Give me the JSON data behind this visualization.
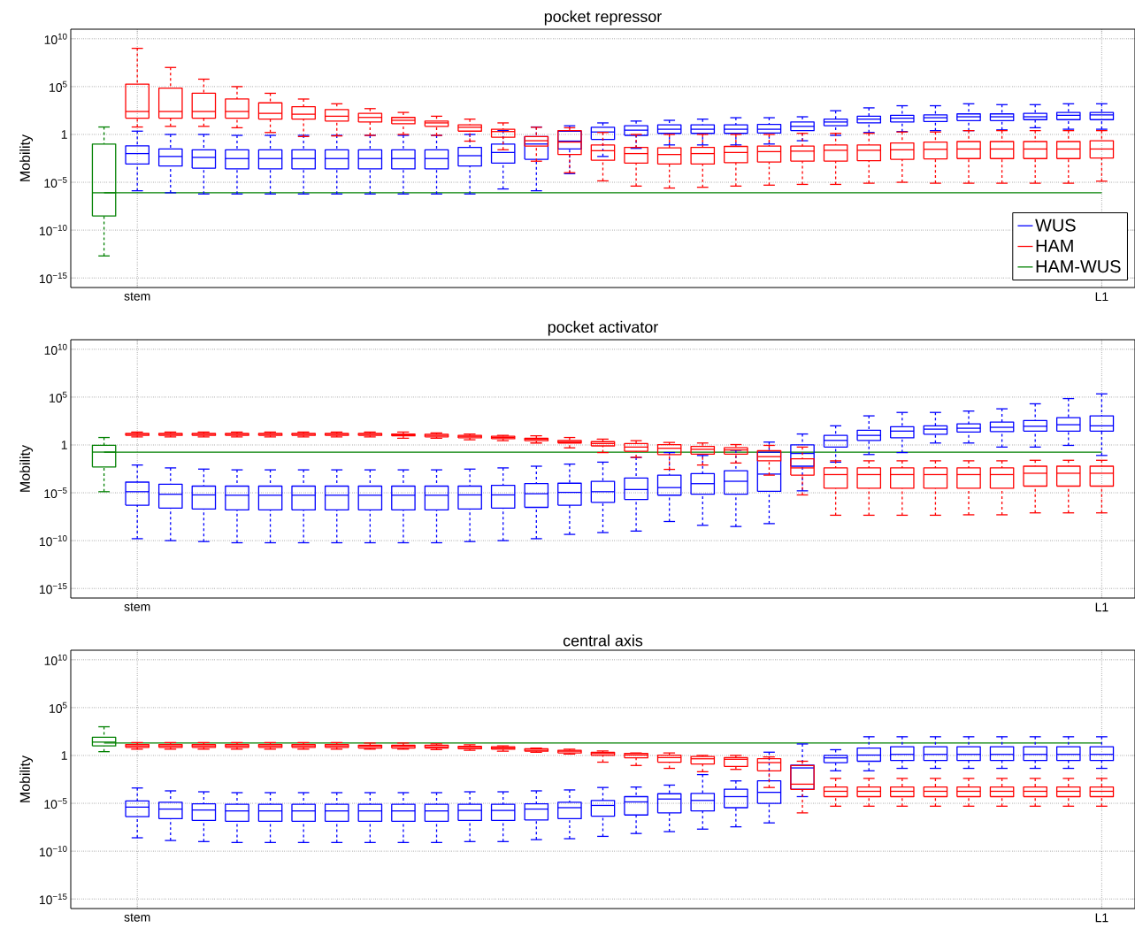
{
  "chart_data": [
    {
      "type": "box",
      "title": "pocket repressor",
      "ylabel": "Mobility",
      "log": "y",
      "grid": true,
      "legend": "bottom right",
      "ylim": [
        1e-16,
        100000000000.0
      ],
      "yticks": [
        {
          "value": 1e-15,
          "label": "10$^{−15}$"
        },
        {
          "value": 1e-10,
          "label": "10$^{−10}$"
        },
        {
          "value": 1e-05,
          "label": "10$^{−5}$"
        },
        1,
        {
          "value": 100000.0,
          "label": "10$^{5}$"
        },
        {
          "value": 10000000000.0,
          "label": "10$^{10}$"
        }
      ],
      "categories": [
        null,
        "stem",
        null,
        null,
        null,
        null,
        null,
        null,
        null,
        null,
        null,
        null,
        null,
        null,
        null,
        null,
        null,
        null,
        null,
        null,
        null,
        null,
        null,
        null,
        null,
        null,
        null,
        null,
        null,
        null,
        "L1"
      ],
      "ref_lines": [
        {
          "axis": "y",
          "value": 8e-07,
          "color": "#008000"
        }
      ],
      "series": [
        {
          "name": "WUS",
          "color": "#0000ff",
          "boxes": [
            null,
            {
              "low": 1.3e-06,
              "q1": 0.0008,
              "median": 0.01,
              "q3": 0.063,
              "high": 2.2
            },
            {
              "low": 8e-07,
              "q1": 0.0005,
              "median": 0.005,
              "q3": 0.03,
              "high": 1
            },
            {
              "low": 6e-07,
              "q1": 0.0003,
              "median": 0.004,
              "q3": 0.025,
              "high": 1
            },
            {
              "low": 6e-07,
              "q1": 0.00025,
              "median": 0.003,
              "q3": 0.025,
              "high": 0.8
            },
            {
              "low": 6e-07,
              "q1": 0.00025,
              "median": 0.003,
              "q3": 0.025,
              "high": 0.8
            },
            {
              "low": 6e-07,
              "q1": 0.00025,
              "median": 0.003,
              "q3": 0.025,
              "high": 0.8
            },
            {
              "low": 6e-07,
              "q1": 0.00025,
              "median": 0.003,
              "q3": 0.025,
              "high": 0.8
            },
            {
              "low": 6e-07,
              "q1": 0.00025,
              "median": 0.003,
              "q3": 0.025,
              "high": 0.8
            },
            {
              "low": 6e-07,
              "q1": 0.00025,
              "median": 0.003,
              "q3": 0.025,
              "high": 0.8
            },
            {
              "low": 6e-07,
              "q1": 0.00025,
              "median": 0.003,
              "q3": 0.025,
              "high": 0.8
            },
            {
              "low": 6e-07,
              "q1": 0.0005,
              "median": 0.006,
              "q3": 0.045,
              "high": 1
            },
            {
              "low": 2e-06,
              "q1": 0.001,
              "median": 0.013,
              "q3": 0.1,
              "high": 2.5
            },
            {
              "low": 1.3e-06,
              "q1": 0.0025,
              "median": 0.1,
              "q3": 0.6,
              "high": 6
            },
            {
              "low": 8e-05,
              "q1": 0.03,
              "median": 0.2,
              "q3": 2.2,
              "high": 8
            },
            {
              "low": 0.005,
              "q1": 0.3,
              "median": 1.8,
              "q3": 5.6,
              "high": 16
            },
            {
              "low": 0.035,
              "q1": 0.8,
              "median": 2.8,
              "q3": 8,
              "high": 25
            },
            {
              "low": 0.08,
              "q1": 1.3,
              "median": 3.5,
              "q3": 10,
              "high": 30
            },
            {
              "low": 0.08,
              "q1": 1.3,
              "median": 3.5,
              "q3": 10,
              "high": 40
            },
            {
              "low": 0.08,
              "q1": 1.3,
              "median": 3.5,
              "q3": 10,
              "high": 56
            },
            {
              "low": 0.1,
              "q1": 1.4,
              "median": 3.5,
              "q3": 11,
              "high": 56
            },
            {
              "low": 0.22,
              "q1": 2.5,
              "median": 7,
              "q3": 20,
              "high": 70
            },
            {
              "low": 0.8,
              "q1": 8,
              "median": 20,
              "q3": 40,
              "high": 300
            },
            {
              "low": 1.6,
              "q1": 16,
              "median": 40,
              "q3": 80,
              "high": 600
            },
            {
              "low": 2,
              "q1": 20,
              "median": 50,
              "q3": 100,
              "high": 1000
            },
            {
              "low": 2.5,
              "q1": 22,
              "median": 56,
              "q3": 110,
              "high": 1000
            },
            {
              "low": 2.5,
              "q1": 28,
              "median": 70,
              "q3": 140,
              "high": 1600
            },
            {
              "low": 3,
              "q1": 28,
              "median": 70,
              "q3": 140,
              "high": 1300
            },
            {
              "low": 5,
              "q1": 35,
              "median": 70,
              "q3": 160,
              "high": 1300
            },
            {
              "low": 3.5,
              "q1": 35,
              "median": 100,
              "q3": 200,
              "high": 1600
            },
            {
              "low": 3.5,
              "q1": 35,
              "median": 110,
              "q3": 200,
              "high": 1600
            }
          ]
        },
        {
          "name": "HAM",
          "color": "#ff0000",
          "boxes": [
            null,
            {
              "low": 6,
              "q1": 50,
              "median": 250,
              "q3": 180000.0,
              "high": 1000000000.0
            },
            {
              "low": 7,
              "q1": 50,
              "median": 250,
              "q3": 70000.0,
              "high": 10000000.0
            },
            {
              "low": 7,
              "q1": 50,
              "median": 250,
              "q3": 20000.0,
              "high": 600000.0
            },
            {
              "low": 5,
              "q1": 50,
              "median": 250,
              "q3": 5000,
              "high": 100000.0
            },
            {
              "low": 1.6,
              "q1": 40,
              "median": 160,
              "q3": 2000,
              "high": 20000.0
            },
            {
              "low": 0.6,
              "q1": 40,
              "median": 130,
              "q3": 800,
              "high": 5000
            },
            {
              "low": 0.7,
              "q1": 25,
              "median": 80,
              "q3": 400,
              "high": 1600
            },
            {
              "low": 0.8,
              "q1": 20,
              "median": 60,
              "q3": 160,
              "high": 500
            },
            {
              "low": 1,
              "q1": 13,
              "median": 30,
              "q3": 60,
              "high": 200
            },
            {
              "low": 0.8,
              "q1": 7,
              "median": 16,
              "q3": 25,
              "high": 80
            },
            {
              "low": 0.2,
              "q1": 2.2,
              "median": 5.6,
              "q3": 10,
              "high": 40
            },
            {
              "low": 0.025,
              "q1": 0.5,
              "median": 2,
              "q3": 3.5,
              "high": 16
            },
            {
              "low": 0.0016,
              "q1": 0.06,
              "median": 0.22,
              "q3": 0.6,
              "high": 5.6
            },
            {
              "low": 0.0001,
              "q1": 0.008,
              "median": 0.16,
              "q3": 2.5,
              "high": 5
            },
            {
              "low": 1.4e-05,
              "q1": 0.002,
              "median": 0.02,
              "q3": 0.08,
              "high": 1.6
            },
            {
              "low": 4e-06,
              "q1": 0.001,
              "median": 0.01,
              "q3": 0.045,
              "high": 1
            },
            {
              "low": 2.5e-06,
              "q1": 0.0008,
              "median": 0.008,
              "q3": 0.04,
              "high": 1
            },
            {
              "low": 3e-06,
              "q1": 0.0008,
              "median": 0.01,
              "q3": 0.045,
              "high": 1
            },
            {
              "low": 4e-06,
              "q1": 0.0011,
              "median": 0.013,
              "q3": 0.056,
              "high": 1
            },
            {
              "low": 5e-06,
              "q1": 0.0013,
              "median": 0.016,
              "q3": 0.06,
              "high": 1
            },
            {
              "low": 6e-06,
              "q1": 0.0016,
              "median": 0.018,
              "q3": 0.06,
              "high": 1.3
            },
            {
              "low": 6e-06,
              "q1": 0.0016,
              "median": 0.022,
              "q3": 0.08,
              "high": 1.3
            },
            {
              "low": 8e-06,
              "q1": 0.0018,
              "median": 0.022,
              "q3": 0.08,
              "high": 1.3
            },
            {
              "low": 1e-05,
              "q1": 0.0025,
              "median": 0.025,
              "q3": 0.13,
              "high": 1.8
            },
            {
              "low": 8e-06,
              "q1": 0.0028,
              "median": 0.028,
              "q3": 0.16,
              "high": 1.8
            },
            {
              "low": 8e-06,
              "q1": 0.003,
              "median": 0.03,
              "q3": 0.18,
              "high": 2.5
            },
            {
              "low": 8e-06,
              "q1": 0.003,
              "median": 0.03,
              "q3": 0.18,
              "high": 2.5
            },
            {
              "low": 8e-06,
              "q1": 0.003,
              "median": 0.03,
              "q3": 0.18,
              "high": 2.5
            },
            {
              "low": 8e-06,
              "q1": 0.003,
              "median": 0.03,
              "q3": 0.18,
              "high": 2.5
            },
            {
              "low": 1.3e-05,
              "q1": 0.0035,
              "median": 0.03,
              "q3": 0.22,
              "high": 2.5
            }
          ]
        },
        {
          "name": "HAM-WUS",
          "color": "#008000",
          "boxes": [
            {
              "low": 2e-13,
              "q1": 3e-09,
              "median": 8e-07,
              "q3": 0.1,
              "high": 6
            },
            null,
            null,
            null,
            null,
            null,
            null,
            null,
            null,
            null,
            null,
            null,
            null,
            null,
            null,
            null,
            null,
            null,
            null,
            null,
            null,
            null,
            null,
            null,
            null,
            null,
            null,
            null,
            null,
            null,
            null
          ]
        }
      ]
    },
    {
      "type": "box",
      "title": "pocket activator",
      "ylabel": "Mobility",
      "log": "y",
      "grid": true,
      "ylim": [
        1e-16,
        100000000000.0
      ],
      "yticks": [
        {
          "value": 1e-15,
          "label": "10$^{−15}$"
        },
        {
          "value": 1e-10,
          "label": "10$^{−10}$"
        },
        {
          "value": 1e-05,
          "label": "10$^{−5}$"
        },
        1,
        {
          "value": 100000.0,
          "label": "10$^{5}$"
        },
        {
          "value": 10000000000.0,
          "label": "10$^{10}$"
        }
      ],
      "categories": [
        null,
        "stem",
        null,
        null,
        null,
        null,
        null,
        null,
        null,
        null,
        null,
        null,
        null,
        null,
        null,
        null,
        null,
        null,
        null,
        null,
        null,
        null,
        null,
        null,
        null,
        null,
        null,
        null,
        null,
        null,
        "L1"
      ],
      "ref_lines": [
        {
          "axis": "y",
          "value": 0.18,
          "color": "#008000"
        }
      ],
      "series": [
        {
          "color": "#0000ff",
          "boxes": [
            null,
            {
              "low": 1.6e-10,
              "q1": 5e-07,
              "median": 1.3e-05,
              "q3": 0.00013,
              "high": 0.008
            },
            {
              "low": 1e-10,
              "q1": 2.5e-07,
              "median": 7e-06,
              "q3": 8e-05,
              "high": 0.004
            },
            {
              "low": 8e-11,
              "q1": 2e-07,
              "median": 6e-06,
              "q3": 5e-05,
              "high": 0.003
            },
            {
              "low": 6e-11,
              "q1": 1.6e-07,
              "median": 5.6e-06,
              "q3": 5e-05,
              "high": 0.0025
            },
            {
              "low": 6e-11,
              "q1": 1.6e-07,
              "median": 5.6e-06,
              "q3": 5e-05,
              "high": 0.0025
            },
            {
              "low": 6e-11,
              "q1": 1.6e-07,
              "median": 5.6e-06,
              "q3": 5e-05,
              "high": 0.0025
            },
            {
              "low": 6e-11,
              "q1": 1.6e-07,
              "median": 5.6e-06,
              "q3": 5e-05,
              "high": 0.0025
            },
            {
              "low": 6e-11,
              "q1": 1.6e-07,
              "median": 5.6e-06,
              "q3": 5e-05,
              "high": 0.0025
            },
            {
              "low": 6e-11,
              "q1": 1.6e-07,
              "median": 5.6e-06,
              "q3": 5e-05,
              "high": 0.0025
            },
            {
              "low": 6e-11,
              "q1": 1.6e-07,
              "median": 5.6e-06,
              "q3": 5e-05,
              "high": 0.0025
            },
            {
              "low": 8e-11,
              "q1": 2e-07,
              "median": 6e-06,
              "q3": 5e-05,
              "high": 0.003
            },
            {
              "low": 1e-10,
              "q1": 2.5e-07,
              "median": 6e-06,
              "q3": 6e-05,
              "high": 0.004
            },
            {
              "low": 1.6e-10,
              "q1": 3e-07,
              "median": 8e-06,
              "q3": 9e-05,
              "high": 0.006
            },
            {
              "low": 4.5e-10,
              "q1": 5e-07,
              "median": 1.1e-05,
              "q3": 0.0001,
              "high": 0.01
            },
            {
              "low": 7e-10,
              "q1": 1e-06,
              "median": 1.3e-05,
              "q3": 0.00016,
              "high": 0.016
            },
            {
              "low": 1e-09,
              "q1": 2e-06,
              "median": 2.2e-05,
              "q3": 0.00035,
              "high": 0.05
            },
            {
              "low": 1e-08,
              "q1": 5.6e-06,
              "median": 3.5e-05,
              "q3": 0.0007,
              "high": 0.16
            },
            {
              "low": 4e-09,
              "q1": 7e-06,
              "median": 9e-05,
              "q3": 0.001,
              "high": 0.08
            },
            {
              "low": 3e-09,
              "q1": 7e-06,
              "median": 0.00016,
              "q3": 0.002,
              "high": 0.28
            },
            {
              "low": 6e-09,
              "q1": 1.4e-05,
              "median": 0.0009,
              "q3": 0.18,
              "high": 2
            },
            {
              "low": 1.6e-05,
              "q1": 0.006,
              "median": 0.13,
              "q3": 1,
              "high": 14
            },
            {
              "low": 0.016,
              "q1": 0.6,
              "median": 3,
              "q3": 10,
              "high": 100
            },
            {
              "low": 0.1,
              "q1": 3,
              "median": 10,
              "q3": 35,
              "high": 1100
            },
            {
              "low": 0.16,
              "q1": 5.6,
              "median": 28,
              "q3": 80,
              "high": 2500
            },
            {
              "low": 1.6,
              "q1": 13,
              "median": 45,
              "q3": 100,
              "high": 2500
            },
            {
              "low": 1.6,
              "q1": 22,
              "median": 56,
              "q3": 160,
              "high": 3500
            },
            {
              "low": 0.6,
              "q1": 25,
              "median": 70,
              "q3": 250,
              "high": 6000
            },
            {
              "low": 0.6,
              "q1": 28,
              "median": 90,
              "q3": 350,
              "high": 20000.0
            },
            {
              "low": 0.9,
              "q1": 28,
              "median": 130,
              "q3": 700,
              "high": 70000.0
            },
            {
              "low": 0.08,
              "q1": 28,
              "median": 100,
              "q3": 1100,
              "high": 220000.0
            }
          ]
        },
        {
          "color": "#ff0000",
          "boxes": [
            null,
            {
              "low": 7,
              "q1": 10,
              "median": 13,
              "q3": 16,
              "high": 22
            },
            {
              "low": 7,
              "q1": 10,
              "median": 13,
              "q3": 16,
              "high": 22
            },
            {
              "low": 7,
              "q1": 10,
              "median": 13,
              "q3": 16,
              "high": 22
            },
            {
              "low": 7,
              "q1": 10,
              "median": 13,
              "q3": 16,
              "high": 22
            },
            {
              "low": 7,
              "q1": 10,
              "median": 13,
              "q3": 16,
              "high": 22
            },
            {
              "low": 7,
              "q1": 10,
              "median": 13,
              "q3": 16,
              "high": 22
            },
            {
              "low": 7,
              "q1": 10,
              "median": 13,
              "q3": 16,
              "high": 22
            },
            {
              "low": 7,
              "q1": 10,
              "median": 13,
              "q3": 16,
              "high": 22
            },
            {
              "low": 5,
              "q1": 9,
              "median": 11,
              "q3": 14,
              "high": 22
            },
            {
              "low": 5,
              "q1": 7,
              "median": 10,
              "q3": 13,
              "high": 18
            },
            {
              "low": 3.5,
              "q1": 5.6,
              "median": 8,
              "q3": 10,
              "high": 14
            },
            {
              "low": 2.8,
              "q1": 4.5,
              "median": 6,
              "q3": 8,
              "high": 10
            },
            {
              "low": 1.6,
              "q1": 2.8,
              "median": 4,
              "q3": 5,
              "high": 9
            },
            {
              "low": 0.5,
              "q1": 1.6,
              "median": 2.2,
              "q3": 3,
              "high": 6
            },
            {
              "low": 0.16,
              "q1": 0.8,
              "median": 1.4,
              "q3": 2.2,
              "high": 4
            },
            {
              "low": 0.05,
              "q1": 0.22,
              "median": 0.6,
              "q3": 1.4,
              "high": 2.8
            },
            {
              "low": 0.0028,
              "q1": 0.1,
              "median": 0.45,
              "q3": 1.1,
              "high": 1.8
            },
            {
              "low": 0.008,
              "q1": 0.11,
              "median": 0.35,
              "q3": 0.7,
              "high": 1.6
            },
            {
              "low": 0.013,
              "q1": 0.11,
              "median": 0.3,
              "q3": 0.5,
              "high": 1.1
            },
            {
              "low": 0.0007,
              "q1": 0.022,
              "median": 0.06,
              "q3": 0.25,
              "high": 0.9
            },
            {
              "low": 6e-06,
              "q1": 0.0007,
              "median": 0.004,
              "q3": 0.035,
              "high": 0.6
            },
            {
              "low": 4.5e-08,
              "q1": 3e-05,
              "median": 0.0008,
              "q3": 0.004,
              "high": 0.022
            },
            {
              "low": 4.5e-08,
              "q1": 3e-05,
              "median": 0.0008,
              "q3": 0.004,
              "high": 0.022
            },
            {
              "low": 4.5e-08,
              "q1": 3e-05,
              "median": 0.0008,
              "q3": 0.004,
              "high": 0.022
            },
            {
              "low": 4.5e-08,
              "q1": 3e-05,
              "median": 0.0008,
              "q3": 0.004,
              "high": 0.022
            },
            {
              "low": 5e-08,
              "q1": 3e-05,
              "median": 0.0008,
              "q3": 0.004,
              "high": 0.022
            },
            {
              "low": 5e-08,
              "q1": 3e-05,
              "median": 0.0008,
              "q3": 0.004,
              "high": 0.022
            },
            {
              "low": 8e-08,
              "q1": 5e-05,
              "median": 0.0011,
              "q3": 0.006,
              "high": 0.025
            },
            {
              "low": 8e-08,
              "q1": 5e-05,
              "median": 0.0011,
              "q3": 0.006,
              "high": 0.025
            },
            {
              "low": 8e-08,
              "q1": 5e-05,
              "median": 0.0011,
              "q3": 0.006,
              "high": 0.025
            }
          ]
        },
        {
          "color": "#008000",
          "boxes": [
            {
              "low": 1.3e-05,
              "q1": 0.005,
              "median": 0.18,
              "q3": 0.9,
              "high": 6
            },
            null,
            null,
            null,
            null,
            null,
            null,
            null,
            null,
            null,
            null,
            null,
            null,
            null,
            null,
            null,
            null,
            null,
            null,
            null,
            null,
            null,
            null,
            null,
            null,
            null,
            null,
            null,
            null,
            null,
            null
          ]
        }
      ]
    },
    {
      "type": "box",
      "title": "central axis",
      "ylabel": "Mobility",
      "log": "y",
      "grid": true,
      "ylim": [
        1e-16,
        100000000000.0
      ],
      "yticks": [
        {
          "value": 1e-15,
          "label": "10$^{−15}$"
        },
        {
          "value": 1e-10,
          "label": "10$^{−10}$"
        },
        {
          "value": 1e-05,
          "label": "10$^{−5}$"
        },
        1,
        {
          "value": 100000.0,
          "label": "10$^{5}$"
        },
        {
          "value": 10000000000.0,
          "label": "10$^{10}$"
        }
      ],
      "categories": [
        null,
        "stem",
        null,
        null,
        null,
        null,
        null,
        null,
        null,
        null,
        null,
        null,
        null,
        null,
        null,
        null,
        null,
        null,
        null,
        null,
        null,
        null,
        null,
        null,
        null,
        null,
        null,
        null,
        null,
        null,
        "L1"
      ],
      "ref_lines": [
        {
          "axis": "y",
          "value": 20,
          "color": "#008000"
        }
      ],
      "series": [
        {
          "color": "#0000ff",
          "boxes": [
            null,
            {
              "low": 2.5e-09,
              "q1": 4e-07,
              "median": 4e-06,
              "q3": 1.8e-05,
              "high": 0.0004
            },
            {
              "low": 1.3e-09,
              "q1": 2.5e-07,
              "median": 2.5e-06,
              "q3": 1.3e-05,
              "high": 0.0002
            },
            {
              "low": 1e-09,
              "q1": 1.6e-07,
              "median": 2e-06,
              "q3": 9e-06,
              "high": 0.00016
            },
            {
              "low": 8e-10,
              "q1": 1.3e-07,
              "median": 1.6e-06,
              "q3": 8e-06,
              "high": 0.00013
            },
            {
              "low": 8e-10,
              "q1": 1.3e-07,
              "median": 1.6e-06,
              "q3": 8e-06,
              "high": 0.00013
            },
            {
              "low": 8e-10,
              "q1": 1.3e-07,
              "median": 1.6e-06,
              "q3": 8e-06,
              "high": 0.00013
            },
            {
              "low": 8e-10,
              "q1": 1.3e-07,
              "median": 1.6e-06,
              "q3": 8e-06,
              "high": 0.00013
            },
            {
              "low": 8e-10,
              "q1": 1.3e-07,
              "median": 1.6e-06,
              "q3": 8e-06,
              "high": 0.00013
            },
            {
              "low": 8e-10,
              "q1": 1.3e-07,
              "median": 1.6e-06,
              "q3": 8e-06,
              "high": 0.00013
            },
            {
              "low": 8e-10,
              "q1": 1.3e-07,
              "median": 1.6e-06,
              "q3": 8e-06,
              "high": 0.00013
            },
            {
              "low": 1e-09,
              "q1": 1.6e-07,
              "median": 1.8e-06,
              "q3": 8e-06,
              "high": 0.00016
            },
            {
              "low": 1e-09,
              "q1": 1.6e-07,
              "median": 1.8e-06,
              "q3": 8e-06,
              "high": 0.00016
            },
            {
              "low": 1.6e-09,
              "q1": 1.8e-07,
              "median": 2.5e-06,
              "q3": 9e-06,
              "high": 0.0002
            },
            {
              "low": 2e-09,
              "q1": 2.5e-07,
              "median": 3.5e-06,
              "q3": 1.3e-05,
              "high": 0.00025
            },
            {
              "low": 3.5e-09,
              "q1": 4.5e-07,
              "median": 6e-06,
              "q3": 2e-05,
              "high": 0.00045
            },
            {
              "low": 7e-09,
              "q1": 6e-07,
              "median": 1.4e-05,
              "q3": 5e-05,
              "high": 0.0005
            },
            {
              "low": 1.1e-08,
              "q1": 1e-06,
              "median": 2.8e-05,
              "q3": 0.0001,
              "high": 0.0008
            },
            {
              "low": 2e-08,
              "q1": 1.6e-06,
              "median": 2e-05,
              "q3": 0.00011,
              "high": 0.01
            },
            {
              "low": 3.5e-08,
              "q1": 3.5e-06,
              "median": 5e-05,
              "q3": 0.0003,
              "high": 0.0022
            },
            {
              "low": 9e-08,
              "q1": 1e-05,
              "median": 0.00014,
              "q3": 0.0022,
              "high": 2.2
            },
            {
              "low": 5e-05,
              "q1": 0.0003,
              "median": 0.05,
              "q3": 0.1,
              "high": 16
            },
            {
              "low": 0.025,
              "q1": 0.18,
              "median": 0.56,
              "q3": 1,
              "high": 4
            },
            {
              "low": 0.025,
              "q1": 0.25,
              "median": 1.1,
              "q3": 6,
              "high": 90
            },
            {
              "low": 0.045,
              "q1": 0.3,
              "median": 1.3,
              "q3": 8,
              "high": 90
            },
            {
              "low": 0.045,
              "q1": 0.3,
              "median": 1.3,
              "q3": 8,
              "high": 90
            },
            {
              "low": 0.045,
              "q1": 0.3,
              "median": 1.3,
              "q3": 8,
              "high": 90
            },
            {
              "low": 0.045,
              "q1": 0.3,
              "median": 1.3,
              "q3": 8,
              "high": 90
            },
            {
              "low": 0.045,
              "q1": 0.3,
              "median": 1.3,
              "q3": 8,
              "high": 90
            },
            {
              "low": 0.045,
              "q1": 0.3,
              "median": 1.3,
              "q3": 8,
              "high": 90
            },
            {
              "low": 0.045,
              "q1": 0.3,
              "median": 1.3,
              "q3": 8,
              "high": 90
            }
          ]
        },
        {
          "color": "#ff0000",
          "boxes": [
            null,
            {
              "low": 4.5,
              "q1": 7,
              "median": 10,
              "q3": 14,
              "high": 22
            },
            {
              "low": 4.5,
              "q1": 7,
              "median": 10,
              "q3": 14,
              "high": 22
            },
            {
              "low": 4.5,
              "q1": 7,
              "median": 10,
              "q3": 14,
              "high": 22
            },
            {
              "low": 4.5,
              "q1": 7,
              "median": 10,
              "q3": 14,
              "high": 22
            },
            {
              "low": 4.5,
              "q1": 7,
              "median": 10,
              "q3": 14,
              "high": 22
            },
            {
              "low": 4.5,
              "q1": 7,
              "median": 10,
              "q3": 14,
              "high": 22
            },
            {
              "low": 4.5,
              "q1": 7,
              "median": 10,
              "q3": 14,
              "high": 22
            },
            {
              "low": 4.5,
              "q1": 6,
              "median": 9,
              "q3": 12,
              "high": 20
            },
            {
              "low": 4.5,
              "q1": 6,
              "median": 9,
              "q3": 12,
              "high": 20
            },
            {
              "low": 4,
              "q1": 6,
              "median": 8,
              "q3": 12,
              "high": 16
            },
            {
              "low": 3.5,
              "q1": 5,
              "median": 7,
              "q3": 9,
              "high": 13
            },
            {
              "low": 2.8,
              "q1": 4.5,
              "median": 6,
              "q3": 8,
              "high": 10
            },
            {
              "low": 2.2,
              "q1": 2.8,
              "median": 3.5,
              "q3": 5,
              "high": 6
            },
            {
              "low": 1.4,
              "q1": 1.8,
              "median": 2.8,
              "q3": 3.5,
              "high": 4.5
            },
            {
              "low": 0.2,
              "q1": 1,
              "median": 1.6,
              "q3": 2.2,
              "high": 3
            },
            {
              "low": 0.09,
              "q1": 0.56,
              "median": 1.1,
              "q3": 1.6,
              "high": 1.8
            },
            {
              "low": 0.045,
              "q1": 0.2,
              "median": 0.6,
              "q3": 1.1,
              "high": 1.8
            },
            {
              "low": 0.02,
              "q1": 0.13,
              "median": 0.45,
              "q3": 0.8,
              "high": 1
            },
            {
              "low": 0.035,
              "q1": 0.07,
              "median": 0.4,
              "q3": 0.6,
              "high": 1
            },
            {
              "low": 0.00045,
              "q1": 0.025,
              "median": 0.18,
              "q3": 0.45,
              "high": 0.7
            },
            {
              "low": 1e-06,
              "q1": 0.00028,
              "median": 0.001,
              "q3": 0.09,
              "high": 0.25
            },
            {
              "low": 5e-06,
              "q1": 5e-05,
              "median": 0.00018,
              "q3": 0.0005,
              "high": 0.004
            },
            {
              "low": 5e-06,
              "q1": 5e-05,
              "median": 0.00018,
              "q3": 0.0005,
              "high": 0.004
            },
            {
              "low": 5e-06,
              "q1": 5e-05,
              "median": 0.00018,
              "q3": 0.0005,
              "high": 0.004
            },
            {
              "low": 5e-06,
              "q1": 5e-05,
              "median": 0.00018,
              "q3": 0.0005,
              "high": 0.004
            },
            {
              "low": 5e-06,
              "q1": 5e-05,
              "median": 0.00018,
              "q3": 0.0005,
              "high": 0.004
            },
            {
              "low": 5e-06,
              "q1": 5e-05,
              "median": 0.00018,
              "q3": 0.0005,
              "high": 0.004
            },
            {
              "low": 5e-06,
              "q1": 5e-05,
              "median": 0.00018,
              "q3": 0.0005,
              "high": 0.004
            },
            {
              "low": 5e-06,
              "q1": 5e-05,
              "median": 0.00018,
              "q3": 0.0005,
              "high": 0.004
            },
            {
              "low": 5e-06,
              "q1": 5e-05,
              "median": 0.00018,
              "q3": 0.0005,
              "high": 0.004
            }
          ]
        },
        {
          "color": "#008000",
          "boxes": [
            {
              "low": 2.5,
              "q1": 10,
              "median": 25,
              "q3": 80,
              "high": 1000
            },
            null,
            null,
            null,
            null,
            null,
            null,
            null,
            null,
            null,
            null,
            null,
            null,
            null,
            null,
            null,
            null,
            null,
            null,
            null,
            null,
            null,
            null,
            null,
            null,
            null,
            null,
            null,
            null,
            null,
            null
          ]
        }
      ]
    }
  ]
}
